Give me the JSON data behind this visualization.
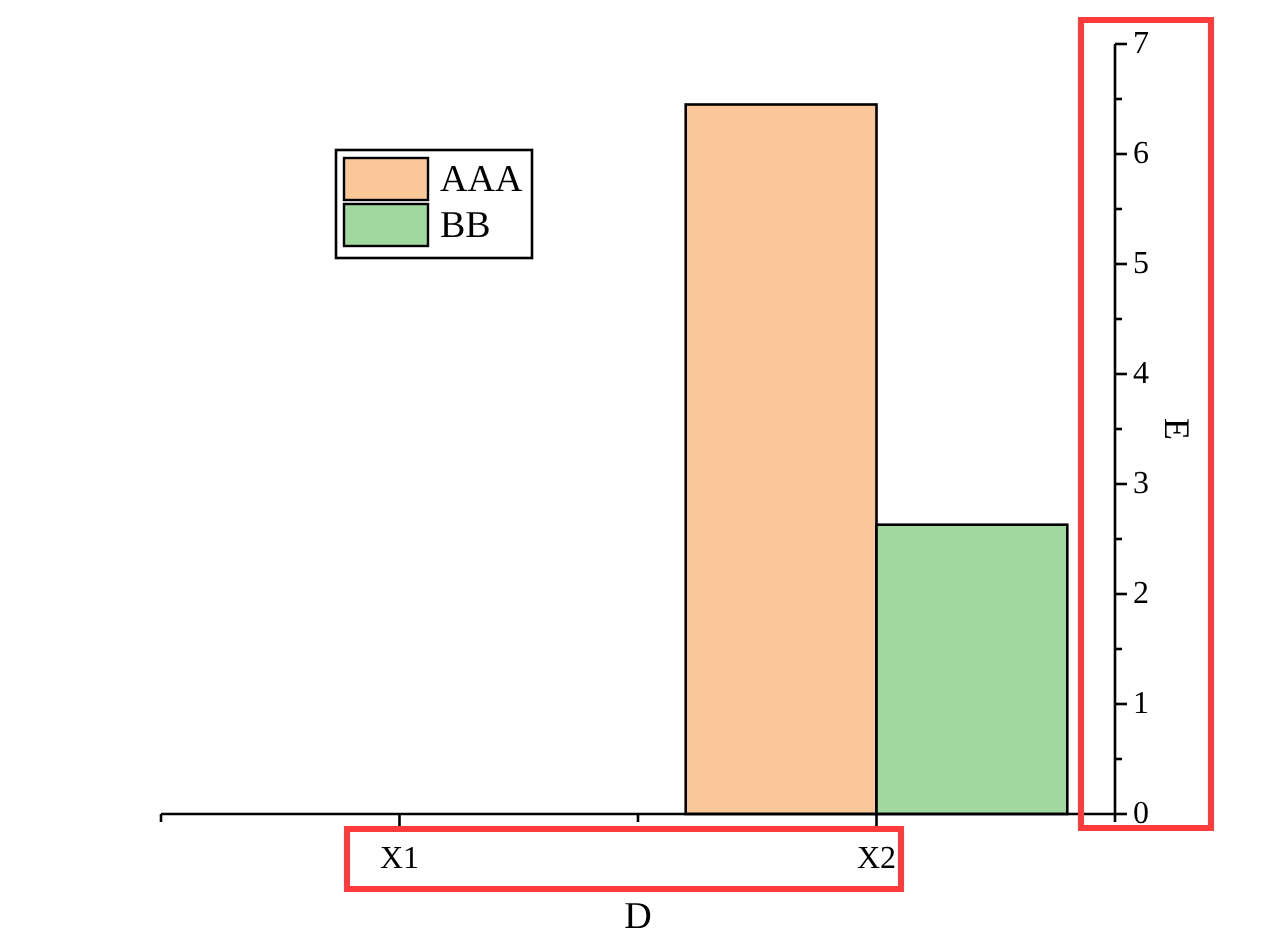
{
  "chart_data": {
    "type": "bar",
    "xlabel": "D",
    "ylabel": "E",
    "categories": [
      "X1",
      "X2"
    ],
    "series": [
      {
        "name": "AAA",
        "color": "#fac898",
        "values": [
          null,
          6.45
        ]
      },
      {
        "name": "BB",
        "color": "#a0d89e",
        "values": [
          null,
          2.63
        ]
      }
    ],
    "ylim": [
      0,
      7
    ],
    "yticks": [
      0,
      {
        "value": 0.5,
        "label": null
      },
      1,
      {
        "value": 1.5,
        "label": null
      },
      2,
      {
        "value": 2.5,
        "label": null
      },
      3,
      {
        "value": 3.5,
        "label": null
      },
      4,
      {
        "value": 4.5,
        "label": null
      },
      5,
      {
        "value": 5.5,
        "label": null
      },
      6,
      {
        "value": 6.5,
        "label": null
      },
      7
    ],
    "grid": false,
    "legend": "top left"
  }
}
